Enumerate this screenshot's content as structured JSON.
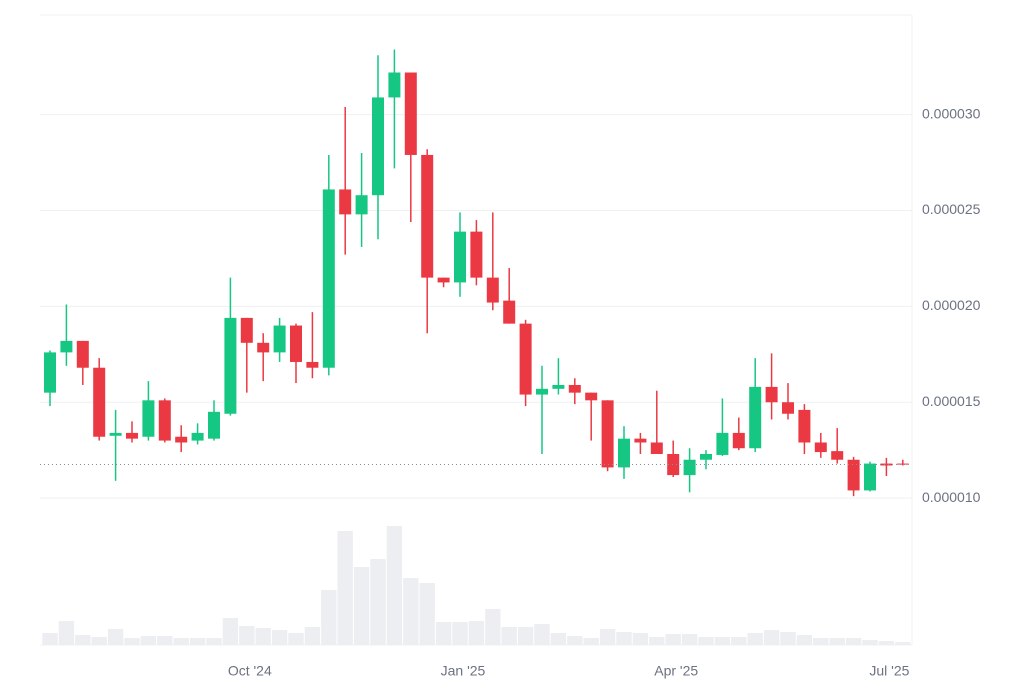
{
  "chart_data": {
    "type": "candlestick",
    "categories": [
      null,
      null,
      null,
      null,
      null,
      null,
      null,
      null,
      null,
      null,
      null,
      null,
      "Oct '24",
      null,
      null,
      null,
      null,
      null,
      null,
      null,
      null,
      null,
      null,
      null,
      null,
      "Jan '25",
      null,
      null,
      null,
      null,
      null,
      null,
      null,
      null,
      null,
      null,
      null,
      null,
      "Apr '25",
      null,
      null,
      null,
      null,
      null,
      null,
      null,
      null,
      null,
      null,
      null,
      null,
      "Jul '25",
      null
    ],
    "open": [
      1.55e-05,
      1.76e-05,
      1.82e-05,
      1.68e-05,
      1.325e-05,
      1.34e-05,
      1.32e-05,
      1.51e-05,
      1.32e-05,
      1.3e-05,
      1.31e-05,
      1.44e-05,
      1.94e-05,
      1.81e-05,
      1.76e-05,
      1.9e-05,
      1.71e-05,
      1.68e-05,
      2.61e-05,
      2.48e-05,
      2.58e-05,
      3.09e-05,
      3.22e-05,
      2.79e-05,
      2.15e-05,
      2.125e-05,
      2.39e-05,
      2.15e-05,
      2.03e-05,
      1.91e-05,
      1.54e-05,
      1.57e-05,
      1.59e-05,
      1.55e-05,
      1.51e-05,
      1.16e-05,
      1.31e-05,
      1.29e-05,
      1.23e-05,
      1.12e-05,
      1.2e-05,
      1.225e-05,
      1.34e-05,
      1.26e-05,
      1.58e-05,
      1.5e-05,
      1.46e-05,
      1.29e-05,
      1.245e-05,
      1.2e-05,
      1.04e-05,
      1.18e-05,
      1.18e-05
    ],
    "high": [
      1.77e-05,
      2.01e-05,
      1.82e-05,
      1.73e-05,
      1.46e-05,
      1.4e-05,
      1.61e-05,
      1.52e-05,
      1.38e-05,
      1.39e-05,
      1.51e-05,
      2.15e-05,
      1.94e-05,
      1.86e-05,
      1.94e-05,
      1.91e-05,
      1.97e-05,
      2.79e-05,
      3.04e-05,
      2.8e-05,
      3.31e-05,
      3.34e-05,
      3.22e-05,
      2.82e-05,
      2.15e-05,
      2.49e-05,
      2.45e-05,
      2.49e-05,
      2.2e-05,
      1.93e-05,
      1.69e-05,
      1.73e-05,
      1.625e-05,
      1.55e-05,
      1.51e-05,
      1.375e-05,
      1.34e-05,
      1.56e-05,
      1.3e-05,
      1.26e-05,
      1.25e-05,
      1.52e-05,
      1.42e-05,
      1.73e-05,
      1.755e-05,
      1.6e-05,
      1.49e-05,
      1.34e-05,
      1.365e-05,
      1.215e-05,
      1.19e-05,
      1.21e-05,
      1.2e-05
    ],
    "low": [
      1.48e-05,
      1.69e-05,
      1.59e-05,
      1.3e-05,
      1.09e-05,
      1.29e-05,
      1.3e-05,
      1.29e-05,
      1.24e-05,
      1.28e-05,
      1.3e-05,
      1.43e-05,
      1.55e-05,
      1.61e-05,
      1.71e-05,
      1.6e-05,
      1.625e-05,
      1.64e-05,
      2.27e-05,
      2.31e-05,
      2.35e-05,
      2.72e-05,
      2.44e-05,
      1.86e-05,
      2.1e-05,
      2.05e-05,
      2.11e-05,
      1.98e-05,
      1.91e-05,
      1.48e-05,
      1.23e-05,
      1.54e-05,
      1.49e-05,
      1.3e-05,
      1.14e-05,
      1.1e-05,
      1.23e-05,
      1.23e-05,
      1.11e-05,
      1.03e-05,
      1.15e-05,
      1.22e-05,
      1.25e-05,
      1.24e-05,
      1.41e-05,
      1.41e-05,
      1.23e-05,
      1.21e-05,
      1.18e-05,
      1.01e-05,
      1.035e-05,
      1.115e-05,
      1.17e-05
    ],
    "close": [
      1.76e-05,
      1.82e-05,
      1.68e-05,
      1.32e-05,
      1.34e-05,
      1.31e-05,
      1.51e-05,
      1.3e-05,
      1.29e-05,
      1.34e-05,
      1.45e-05,
      1.94e-05,
      1.81e-05,
      1.76e-05,
      1.9e-05,
      1.71e-05,
      1.68e-05,
      2.61e-05,
      2.48e-05,
      2.58e-05,
      3.09e-05,
      3.22e-05,
      2.79e-05,
      2.15e-05,
      2.125e-05,
      2.39e-05,
      2.15e-05,
      2.02e-05,
      1.91e-05,
      1.54e-05,
      1.57e-05,
      1.59e-05,
      1.55e-05,
      1.51e-05,
      1.16e-05,
      1.31e-05,
      1.29e-05,
      1.23e-05,
      1.12e-05,
      1.2e-05,
      1.23e-05,
      1.34e-05,
      1.26e-05,
      1.58e-05,
      1.5e-05,
      1.44e-05,
      1.29e-05,
      1.24e-05,
      1.2e-05,
      1.04e-05,
      1.18e-05,
      1.17e-05,
      1.175e-05
    ],
    "volume": [
      12,
      24,
      10,
      8,
      16,
      7,
      9,
      9,
      7,
      7,
      7,
      27,
      19,
      17,
      15,
      12,
      18,
      55,
      114,
      78,
      86,
      119,
      67,
      62,
      23,
      23,
      24,
      36,
      18,
      18,
      21,
      12,
      9,
      7,
      16,
      13,
      12,
      8,
      11,
      11,
      8,
      8,
      8,
      12,
      15,
      13,
      10,
      7,
      7,
      7,
      5,
      4,
      3
    ],
    "up_color": "#16c784",
    "down_color": "#ea3943",
    "volume_color": "#eceef1",
    "ylim": [
      9.9e-06,
      3.52e-05
    ],
    "yticks": [
      {
        "value": 1e-05,
        "label": "0.000010"
      },
      {
        "value": 1.5e-05,
        "label": "0.000015"
      },
      {
        "value": 2e-05,
        "label": "0.000020"
      },
      {
        "value": 2.5e-05,
        "label": "0.000025"
      },
      {
        "value": 3e-05,
        "label": "0.000030"
      }
    ],
    "grid": true
  }
}
